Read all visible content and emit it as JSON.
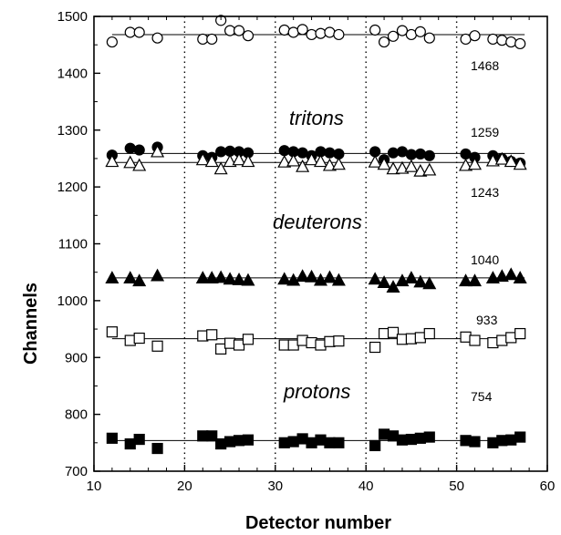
{
  "chart_data": {
    "type": "scatter",
    "title": "",
    "xlabel": "Detector number",
    "ylabel": "Channels",
    "xlim": [
      10,
      60
    ],
    "ylim": [
      700,
      1500
    ],
    "x_ticks": [
      10,
      20,
      30,
      40,
      50,
      60
    ],
    "y_ticks": [
      700,
      800,
      900,
      1000,
      1100,
      1200,
      1300,
      1400,
      1500
    ],
    "vertical_dotted_lines": [
      20,
      30,
      40,
      50
    ],
    "series": [
      {
        "marker": "open-circle",
        "fit_value": 1468,
        "x": [
          12,
          14,
          15,
          17,
          22,
          23,
          24,
          25,
          26,
          27,
          31,
          32,
          33,
          34,
          35,
          36,
          37,
          41,
          42,
          43,
          44,
          45,
          46,
          47,
          51,
          52,
          54,
          55,
          56,
          57
        ],
        "y": [
          1455,
          1472,
          1472,
          1462,
          1460,
          1460,
          1493,
          1475,
          1475,
          1466,
          1476,
          1472,
          1477,
          1468,
          1470,
          1472,
          1468,
          1476,
          1455,
          1465,
          1475,
          1468,
          1473,
          1462,
          1460,
          1466,
          1460,
          1458,
          1455,
          1452
        ]
      },
      {
        "marker": "filled-circle",
        "fit_value": 1259,
        "x": [
          12,
          14,
          15,
          17,
          22,
          23,
          24,
          25,
          26,
          27,
          31,
          32,
          33,
          34,
          35,
          36,
          37,
          41,
          42,
          43,
          44,
          45,
          46,
          47,
          51,
          52,
          54,
          55,
          56,
          57
        ],
        "y": [
          1256,
          1268,
          1265,
          1270,
          1255,
          1252,
          1262,
          1263,
          1262,
          1260,
          1264,
          1262,
          1260,
          1255,
          1262,
          1260,
          1258,
          1262,
          1248,
          1260,
          1262,
          1257,
          1258,
          1255,
          1258,
          1252,
          1255,
          1250,
          1245,
          1242
        ]
      },
      {
        "marker": "open-triangle",
        "fit_value": 1243,
        "x": [
          12,
          14,
          15,
          17,
          22,
          23,
          24,
          25,
          26,
          27,
          31,
          32,
          33,
          34,
          35,
          36,
          37,
          41,
          42,
          43,
          44,
          45,
          46,
          47,
          51,
          52,
          54,
          55,
          56,
          57
        ],
        "y": [
          1245,
          1243,
          1238,
          1262,
          1248,
          1245,
          1232,
          1245,
          1248,
          1245,
          1244,
          1246,
          1236,
          1248,
          1245,
          1238,
          1240,
          1244,
          1240,
          1232,
          1233,
          1236,
          1228,
          1230,
          1238,
          1240,
          1246,
          1249,
          1245,
          1240
        ]
      },
      {
        "marker": "filled-triangle",
        "fit_value": 1040,
        "x": [
          12,
          14,
          15,
          17,
          22,
          23,
          24,
          25,
          26,
          27,
          31,
          32,
          33,
          34,
          35,
          36,
          37,
          41,
          42,
          43,
          44,
          45,
          46,
          47,
          51,
          52,
          54,
          55,
          56,
          57
        ],
        "y": [
          1040,
          1040,
          1035,
          1044,
          1040,
          1040,
          1041,
          1038,
          1037,
          1036,
          1038,
          1036,
          1043,
          1042,
          1036,
          1041,
          1036,
          1038,
          1032,
          1024,
          1035,
          1040,
          1033,
          1030,
          1035,
          1035,
          1040,
          1043,
          1046,
          1040
        ]
      },
      {
        "marker": "open-square",
        "fit_value": 933,
        "x": [
          12,
          14,
          15,
          17,
          22,
          23,
          24,
          25,
          26,
          27,
          31,
          32,
          33,
          34,
          35,
          36,
          37,
          41,
          42,
          43,
          44,
          45,
          46,
          47,
          51,
          52,
          54,
          55,
          56,
          57
        ],
        "y": [
          945,
          930,
          934,
          920,
          938,
          940,
          915,
          925,
          922,
          932,
          922,
          922,
          930,
          926,
          922,
          928,
          929,
          918,
          942,
          944,
          932,
          933,
          935,
          942,
          936,
          930,
          926,
          930,
          935,
          942
        ]
      },
      {
        "marker": "filled-square",
        "fit_value": 754,
        "x": [
          12,
          14,
          15,
          17,
          22,
          23,
          24,
          25,
          26,
          27,
          31,
          32,
          33,
          34,
          35,
          36,
          37,
          41,
          42,
          43,
          44,
          45,
          46,
          47,
          51,
          52,
          54,
          55,
          56,
          57
        ],
        "y": [
          758,
          748,
          756,
          740,
          762,
          762,
          748,
          752,
          754,
          755,
          750,
          752,
          757,
          750,
          755,
          750,
          750,
          745,
          765,
          762,
          755,
          756,
          758,
          760,
          754,
          752,
          750,
          754,
          755,
          760
        ]
      }
    ],
    "value_labels": [
      "1468",
      "1259",
      "1243",
      "1040",
      "933",
      "754"
    ],
    "species_labels": [
      "tritons",
      "deuterons",
      "protons"
    ]
  }
}
